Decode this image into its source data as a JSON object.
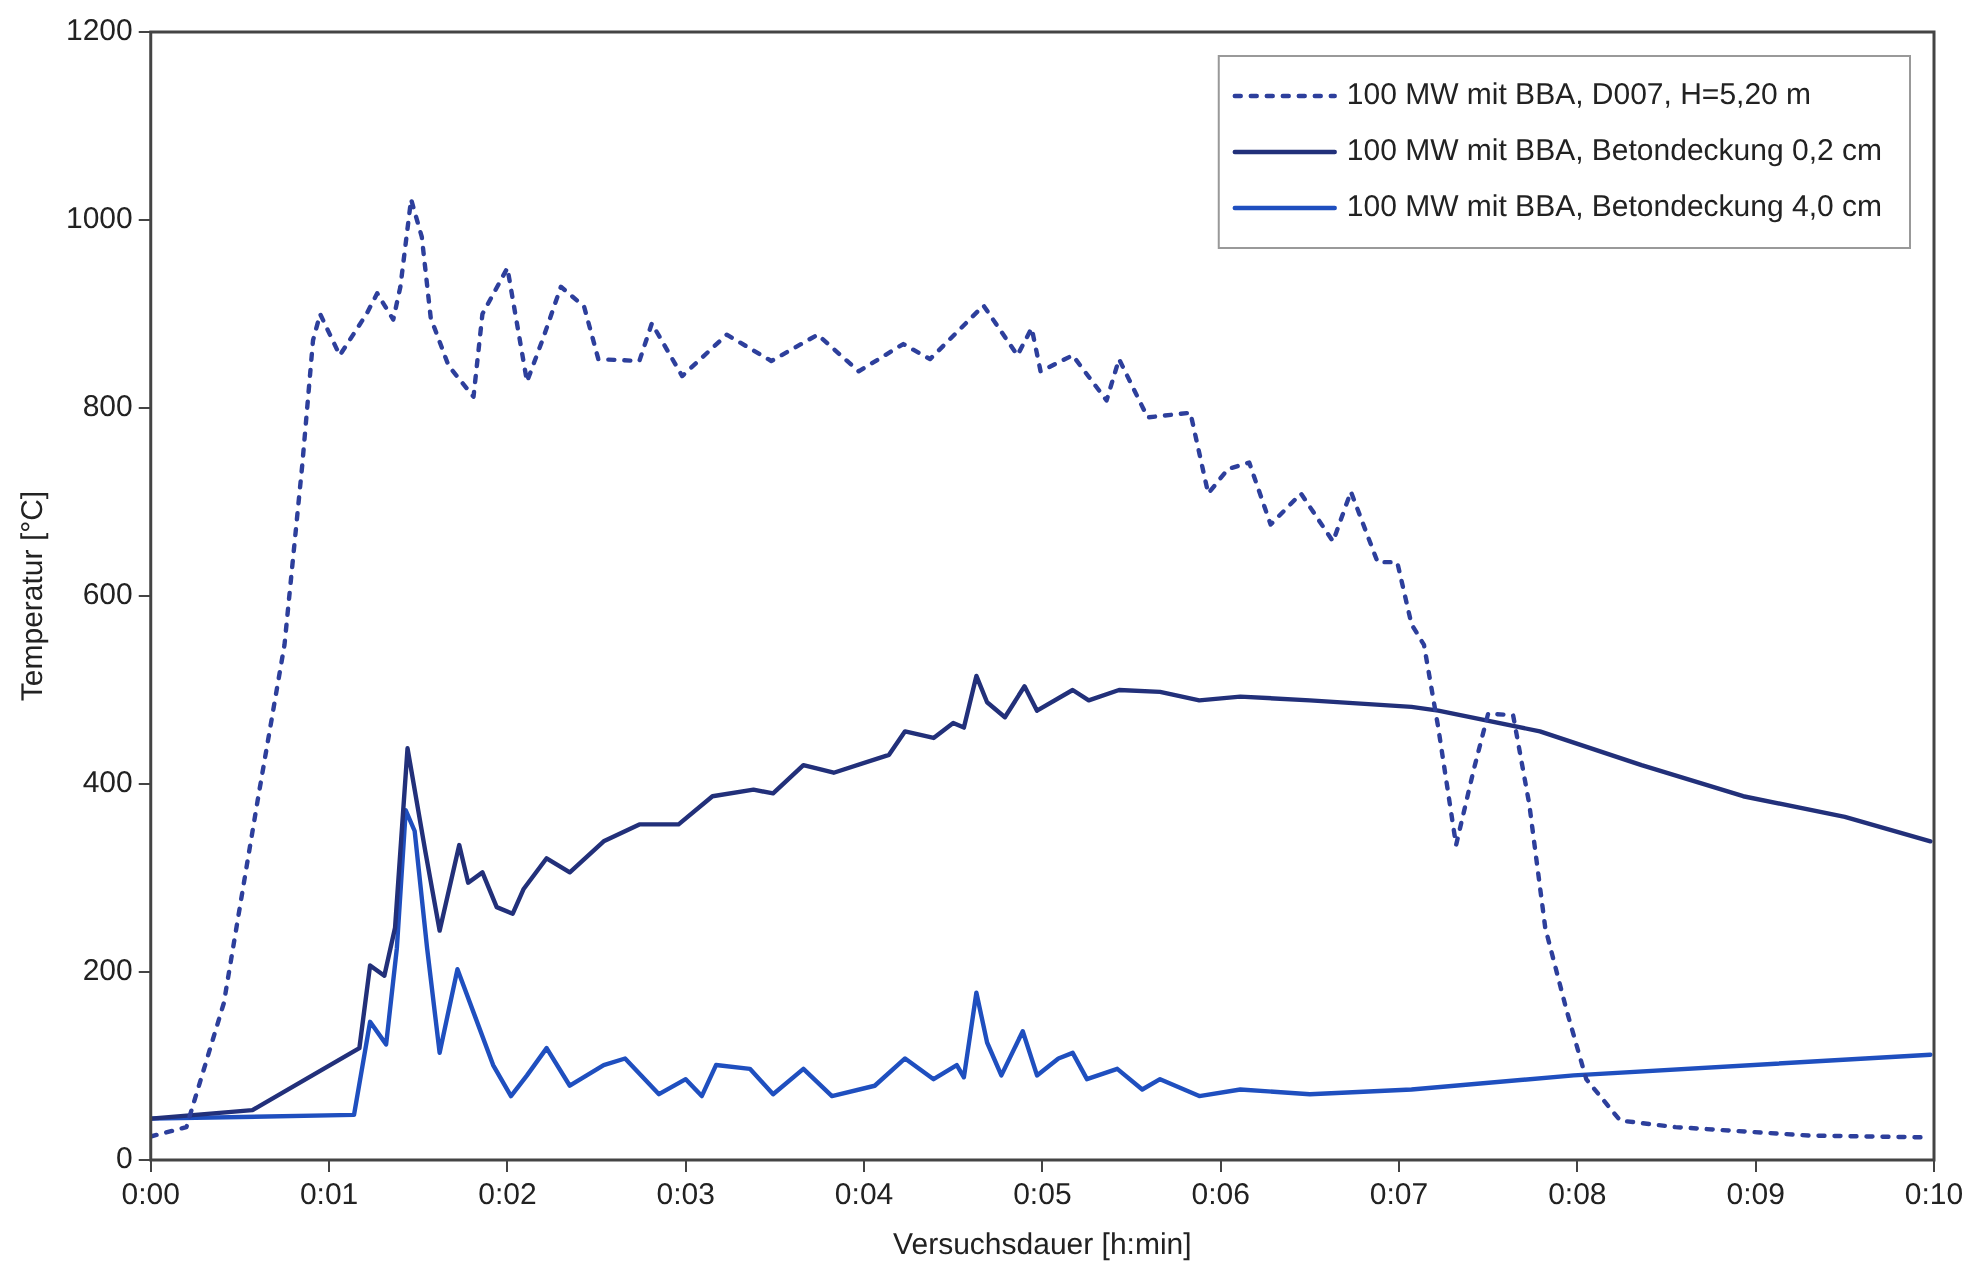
{
  "chart_data": {
    "type": "line",
    "xlabel": "Versuchsdauer [h:min]",
    "ylabel": "Temperatur [°C]",
    "xlim": [
      0,
      10
    ],
    "xticks": [
      {
        "value": 0,
        "label": "0:00"
      },
      {
        "value": 1,
        "label": "0:01"
      },
      {
        "value": 2,
        "label": "0:02"
      },
      {
        "value": 3,
        "label": "0:03"
      },
      {
        "value": 4,
        "label": "0:04"
      },
      {
        "value": 5,
        "label": "0:05"
      },
      {
        "value": 6,
        "label": "0:06"
      },
      {
        "value": 7,
        "label": "0:07"
      },
      {
        "value": 8,
        "label": "0:08"
      },
      {
        "value": 9,
        "label": "0:09"
      },
      {
        "value": 10,
        "label": "0:10"
      }
    ],
    "ylim": [
      0,
      1200
    ],
    "yticks": [
      0,
      200,
      400,
      600,
      800,
      1000,
      1200
    ],
    "grid": false,
    "legend": "top right",
    "marker": "none",
    "series": [
      {
        "name": "100 MW mit BBA, D007, H=5,20 m",
        "color": "#2d3f9c",
        "line_style": "dotted",
        "x": [
          0,
          0.2,
          0.41,
          0.6,
          0.75,
          0.85,
          0.91,
          0.95,
          1.06,
          1.21,
          1.27,
          1.36,
          1.4,
          1.46,
          1.52,
          1.57,
          1.67,
          1.81,
          1.86,
          2,
          2.11,
          2.2,
          2.3,
          2.43,
          2.51,
          2.74,
          2.81,
          2.98,
          3.23,
          3.48,
          3.74,
          3.97,
          4.22,
          4.37,
          4.67,
          4.86,
          4.94,
          4.99,
          5.17,
          5.36,
          5.43,
          5.59,
          5.83,
          5.93,
          6.04,
          6.16,
          6.28,
          6.45,
          6.63,
          6.73,
          6.88,
          6.99,
          7.07,
          7.14,
          7.22,
          7.32,
          7.42,
          7.5,
          7.64,
          7.73,
          7.82,
          7.94,
          8.05,
          8.24,
          8.55,
          9.3,
          9.98
        ],
        "values": [
          25,
          35,
          167,
          383,
          548,
          740,
          872,
          900,
          856,
          900,
          922,
          894,
          929,
          1022,
          982,
          896,
          845,
          812,
          900,
          949,
          828,
          874,
          929,
          908,
          852,
          850,
          890,
          834,
          878,
          850,
          878,
          839,
          868,
          852,
          909,
          856,
          885,
          839,
          856,
          808,
          852,
          790,
          795,
          709,
          735,
          742,
          676,
          709,
          658,
          711,
          636,
          636,
          570,
          548,
          460,
          335,
          416,
          475,
          473,
          379,
          247,
          159,
          86,
          42,
          35,
          26,
          24
        ]
      },
      {
        "name": "100 MW mit BBA, Betondeckung 0,2 cm",
        "color": "#22307a",
        "line_style": "solid",
        "x": [
          0,
          0.57,
          0.87,
          1.17,
          1.23,
          1.31,
          1.37,
          1.44,
          1.54,
          1.62,
          1.73,
          1.78,
          1.86,
          1.94,
          2.03,
          2.09,
          2.22,
          2.35,
          2.54,
          2.74,
          2.96,
          3.15,
          3.38,
          3.49,
          3.66,
          3.83,
          4.14,
          4.23,
          4.39,
          4.5,
          4.56,
          4.63,
          4.69,
          4.79,
          4.9,
          4.97,
          5.17,
          5.26,
          5.43,
          5.66,
          5.88,
          6.11,
          6.5,
          7.07,
          7.22,
          7.79,
          8.36,
          8.93,
          9.5,
          9.98
        ],
        "values": [
          44,
          53,
          86,
          119,
          207,
          196,
          247,
          438,
          328,
          244,
          335,
          295,
          306,
          269,
          262,
          288,
          321,
          306,
          339,
          357,
          357,
          387,
          394,
          390,
          420,
          412,
          431,
          456,
          449,
          465,
          460,
          515,
          487,
          471,
          504,
          478,
          500,
          489,
          500,
          498,
          489,
          493,
          489,
          482,
          478,
          456,
          420,
          387,
          365,
          339
        ]
      },
      {
        "name": "100 MW mit BBA, Betondeckung 4,0 cm",
        "color": "#1f4fbf",
        "line_style": "solid",
        "x": [
          0,
          1.14,
          1.23,
          1.32,
          1.38,
          1.43,
          1.48,
          1.55,
          1.62,
          1.72,
          1.82,
          1.92,
          2.02,
          2.11,
          2.22,
          2.35,
          2.54,
          2.66,
          2.85,
          3,
          3.09,
          3.17,
          3.36,
          3.49,
          3.66,
          3.82,
          4.06,
          4.23,
          4.39,
          4.52,
          4.56,
          4.63,
          4.69,
          4.77,
          4.89,
          4.97,
          5.09,
          5.17,
          5.25,
          5.42,
          5.56,
          5.66,
          5.88,
          6.11,
          6.5,
          7.07,
          7.98,
          9.98
        ],
        "values": [
          44,
          48,
          147,
          123,
          225,
          372,
          350,
          225,
          114,
          203,
          152,
          101,
          68,
          90,
          119,
          79,
          101,
          108,
          70,
          86,
          68,
          101,
          97,
          70,
          97,
          68,
          79,
          108,
          86,
          101,
          88,
          178,
          125,
          90,
          137,
          90,
          108,
          114,
          86,
          97,
          75,
          86,
          68,
          75,
          70,
          75,
          90,
          112
        ]
      }
    ]
  }
}
